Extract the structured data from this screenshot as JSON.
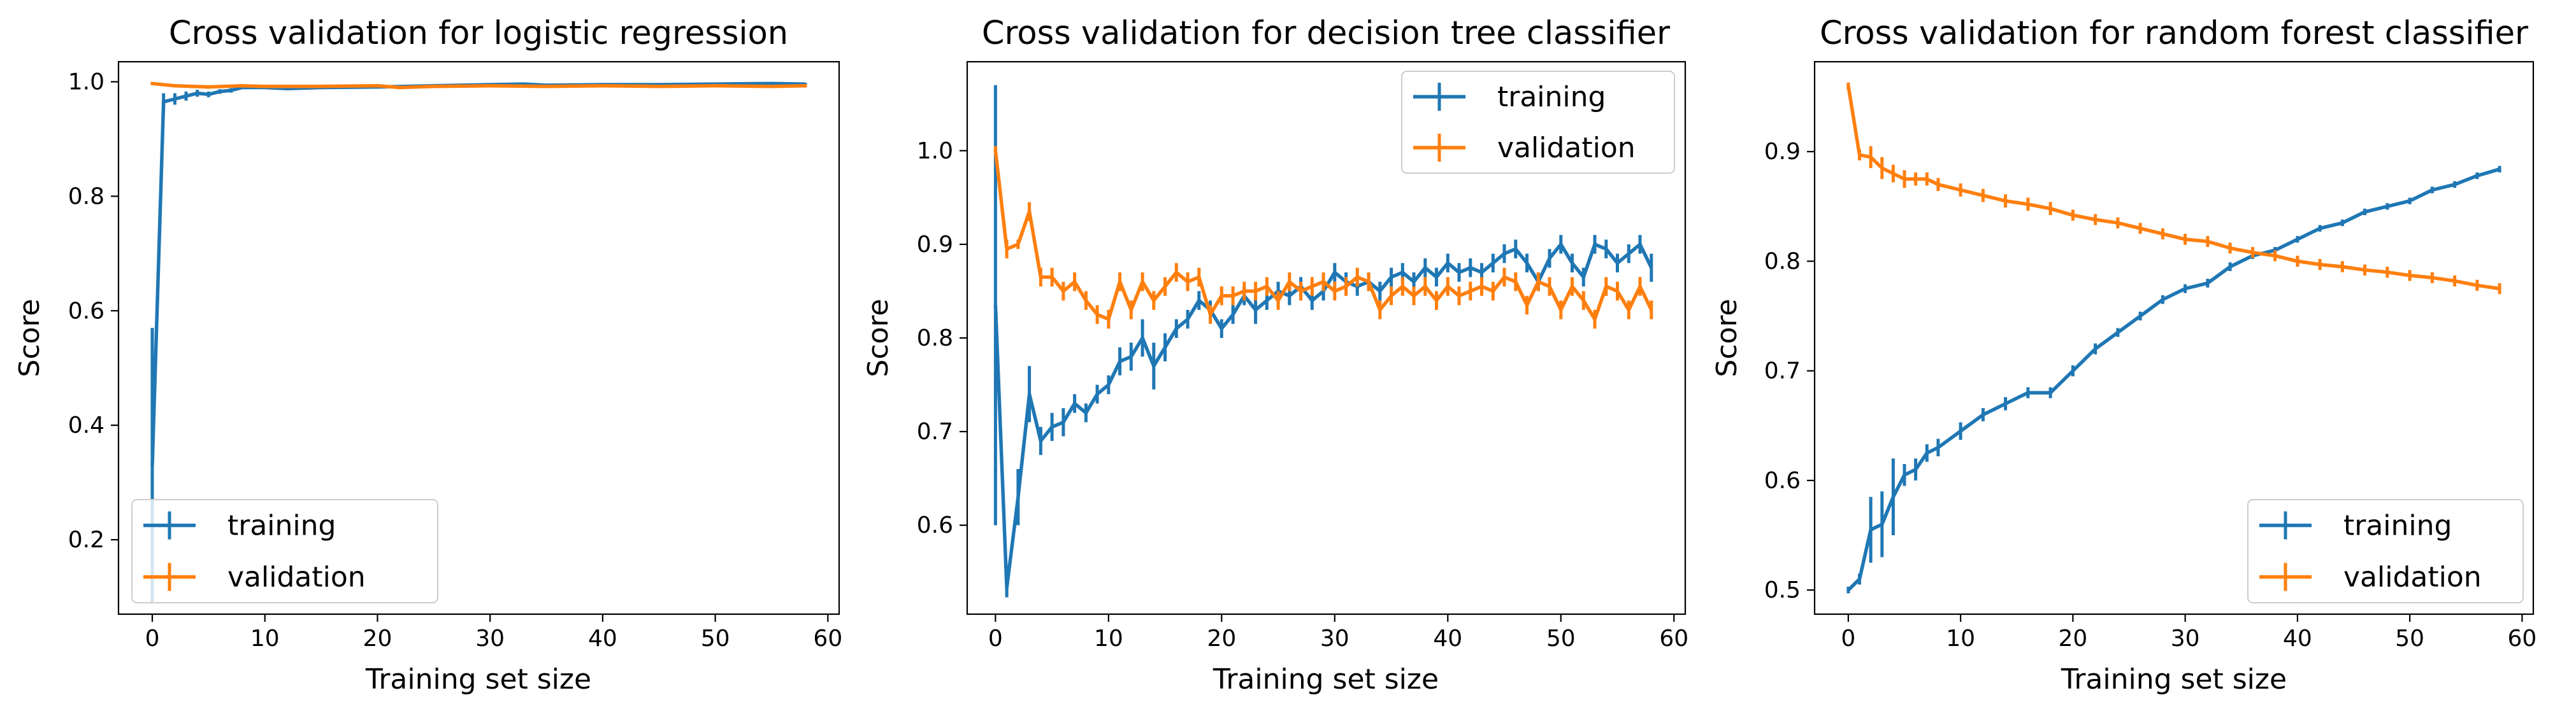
{
  "colors": {
    "training": "#1f77b4",
    "validation": "#ff7f0e"
  },
  "chart_data": [
    {
      "type": "line",
      "title": "Cross validation for logistic regression",
      "xlabel": "Training set size",
      "ylabel": "Score",
      "xlim": [
        -3,
        61
      ],
      "ylim": [
        0.07,
        1.035
      ],
      "xticks": [
        0,
        10,
        20,
        30,
        40,
        50,
        60
      ],
      "yticks": [
        0.2,
        0.4,
        0.6,
        0.8,
        1.0
      ],
      "legend": {
        "position": "lower-left"
      },
      "series": [
        {
          "name": "training",
          "x": [
            0,
            1,
            2,
            3,
            4,
            5,
            6,
            7,
            8,
            10,
            12,
            15,
            20,
            25,
            30,
            33,
            35,
            40,
            45,
            50,
            55,
            58
          ],
          "y": [
            0.33,
            0.965,
            0.97,
            0.975,
            0.98,
            0.978,
            0.983,
            0.985,
            0.99,
            0.99,
            0.988,
            0.99,
            0.991,
            0.993,
            0.995,
            0.996,
            0.994,
            0.995,
            0.995,
            0.996,
            0.997,
            0.996
          ],
          "error": [
            0.24,
            0.015,
            0.01,
            0.008,
            0.006,
            0.005,
            0.004,
            0.004,
            0.003,
            0.003,
            0.003,
            0.003,
            0.002,
            0.002,
            0.002,
            0.002,
            0.002,
            0.002,
            0.002,
            0.002,
            0.002,
            0.002
          ]
        },
        {
          "name": "validation",
          "x": [
            0,
            2,
            5,
            8,
            10,
            15,
            20,
            22,
            25,
            30,
            35,
            40,
            45,
            50,
            55,
            58
          ],
          "y": [
            0.997,
            0.993,
            0.991,
            0.993,
            0.992,
            0.992,
            0.993,
            0.99,
            0.992,
            0.993,
            0.992,
            0.993,
            0.992,
            0.993,
            0.992,
            0.993
          ],
          "error": [
            0.003,
            0.003,
            0.003,
            0.003,
            0.003,
            0.003,
            0.003,
            0.003,
            0.003,
            0.003,
            0.003,
            0.003,
            0.003,
            0.003,
            0.003,
            0.003
          ]
        }
      ]
    },
    {
      "type": "line",
      "title": "Cross validation for decision tree classifier",
      "xlabel": "Training set size",
      "ylabel": "Score",
      "xlim": [
        -2.5,
        61
      ],
      "ylim": [
        0.505,
        1.095
      ],
      "xticks": [
        0,
        10,
        20,
        30,
        40,
        50,
        60
      ],
      "yticks": [
        0.6,
        0.7,
        0.8,
        0.9,
        1.0
      ],
      "legend": {
        "position": "upper-right"
      },
      "series": [
        {
          "name": "training",
          "x": [
            0,
            1,
            2,
            3,
            4,
            5,
            6,
            7,
            8,
            9,
            10,
            11,
            12,
            13,
            14,
            15,
            16,
            17,
            18,
            19,
            20,
            21,
            22,
            23,
            24,
            25,
            26,
            27,
            28,
            29,
            30,
            31,
            32,
            33,
            34,
            35,
            36,
            37,
            38,
            39,
            40,
            41,
            42,
            43,
            44,
            45,
            46,
            47,
            48,
            49,
            50,
            51,
            52,
            53,
            54,
            55,
            56,
            57,
            58
          ],
          "y": [
            0.835,
            0.533,
            0.63,
            0.74,
            0.69,
            0.705,
            0.71,
            0.73,
            0.72,
            0.74,
            0.75,
            0.775,
            0.78,
            0.8,
            0.77,
            0.79,
            0.81,
            0.82,
            0.84,
            0.83,
            0.81,
            0.825,
            0.845,
            0.83,
            0.84,
            0.85,
            0.845,
            0.855,
            0.84,
            0.85,
            0.87,
            0.86,
            0.855,
            0.86,
            0.85,
            0.865,
            0.87,
            0.86,
            0.875,
            0.865,
            0.88,
            0.87,
            0.875,
            0.87,
            0.88,
            0.89,
            0.895,
            0.88,
            0.86,
            0.885,
            0.9,
            0.88,
            0.865,
            0.9,
            0.895,
            0.88,
            0.89,
            0.9,
            0.875
          ],
          "error": [
            0.235,
            0.01,
            0.03,
            0.03,
            0.015,
            0.015,
            0.015,
            0.01,
            0.01,
            0.01,
            0.01,
            0.015,
            0.015,
            0.02,
            0.025,
            0.015,
            0.01,
            0.01,
            0.01,
            0.01,
            0.01,
            0.01,
            0.01,
            0.015,
            0.01,
            0.01,
            0.01,
            0.01,
            0.01,
            0.01,
            0.01,
            0.01,
            0.01,
            0.01,
            0.01,
            0.01,
            0.01,
            0.01,
            0.01,
            0.01,
            0.01,
            0.01,
            0.01,
            0.01,
            0.01,
            0.01,
            0.01,
            0.01,
            0.01,
            0.01,
            0.01,
            0.01,
            0.01,
            0.01,
            0.01,
            0.01,
            0.01,
            0.01,
            0.015
          ]
        },
        {
          "name": "validation",
          "x": [
            0,
            1,
            2,
            3,
            4,
            5,
            6,
            7,
            8,
            9,
            10,
            11,
            12,
            13,
            14,
            15,
            16,
            17,
            18,
            19,
            20,
            21,
            22,
            23,
            24,
            25,
            26,
            27,
            28,
            29,
            30,
            31,
            32,
            33,
            34,
            35,
            36,
            37,
            38,
            39,
            40,
            41,
            42,
            43,
            44,
            45,
            46,
            47,
            48,
            49,
            50,
            51,
            52,
            53,
            54,
            55,
            56,
            57,
            58
          ],
          "y": [
            1.0,
            0.895,
            0.9,
            0.935,
            0.865,
            0.865,
            0.85,
            0.86,
            0.84,
            0.825,
            0.82,
            0.86,
            0.83,
            0.86,
            0.84,
            0.855,
            0.87,
            0.86,
            0.865,
            0.825,
            0.845,
            0.845,
            0.85,
            0.85,
            0.855,
            0.84,
            0.86,
            0.85,
            0.855,
            0.86,
            0.85,
            0.855,
            0.865,
            0.86,
            0.83,
            0.845,
            0.855,
            0.845,
            0.855,
            0.84,
            0.855,
            0.845,
            0.85,
            0.855,
            0.85,
            0.865,
            0.86,
            0.835,
            0.86,
            0.855,
            0.83,
            0.855,
            0.84,
            0.82,
            0.855,
            0.85,
            0.83,
            0.855,
            0.83
          ],
          "error": [
            0.005,
            0.01,
            0.005,
            0.01,
            0.01,
            0.01,
            0.01,
            0.01,
            0.01,
            0.01,
            0.01,
            0.01,
            0.01,
            0.01,
            0.01,
            0.01,
            0.01,
            0.01,
            0.01,
            0.01,
            0.01,
            0.01,
            0.01,
            0.01,
            0.01,
            0.01,
            0.01,
            0.01,
            0.01,
            0.01,
            0.01,
            0.01,
            0.01,
            0.01,
            0.01,
            0.01,
            0.01,
            0.01,
            0.01,
            0.01,
            0.01,
            0.01,
            0.01,
            0.01,
            0.01,
            0.01,
            0.01,
            0.01,
            0.01,
            0.01,
            0.01,
            0.01,
            0.01,
            0.01,
            0.01,
            0.01,
            0.01,
            0.01,
            0.01
          ]
        }
      ]
    },
    {
      "type": "line",
      "title": "Cross validation for random forest classifier",
      "xlabel": "Training set size",
      "ylabel": "Score",
      "xlim": [
        -3,
        61
      ],
      "ylim": [
        0.478,
        0.982
      ],
      "xticks": [
        0,
        10,
        20,
        30,
        40,
        50,
        60
      ],
      "yticks": [
        0.5,
        0.6,
        0.7,
        0.8,
        0.9
      ],
      "legend": {
        "position": "lower-right"
      },
      "series": [
        {
          "name": "training",
          "x": [
            0,
            1,
            2,
            3,
            4,
            5,
            6,
            7,
            8,
            10,
            12,
            14,
            16,
            18,
            20,
            22,
            24,
            26,
            28,
            30,
            32,
            34,
            36,
            38,
            40,
            42,
            44,
            46,
            48,
            50,
            52,
            54,
            56,
            58
          ],
          "y": [
            0.5,
            0.51,
            0.555,
            0.56,
            0.585,
            0.605,
            0.61,
            0.625,
            0.63,
            0.645,
            0.66,
            0.67,
            0.68,
            0.68,
            0.7,
            0.72,
            0.735,
            0.75,
            0.765,
            0.775,
            0.78,
            0.795,
            0.805,
            0.81,
            0.82,
            0.83,
            0.835,
            0.845,
            0.85,
            0.855,
            0.865,
            0.87,
            0.878,
            0.884
          ],
          "error": [
            0.003,
            0.005,
            0.03,
            0.03,
            0.035,
            0.01,
            0.01,
            0.008,
            0.008,
            0.008,
            0.006,
            0.006,
            0.005,
            0.005,
            0.005,
            0.005,
            0.004,
            0.004,
            0.004,
            0.004,
            0.004,
            0.004,
            0.003,
            0.003,
            0.003,
            0.003,
            0.003,
            0.003,
            0.003,
            0.003,
            0.003,
            0.003,
            0.003,
            0.003
          ]
        },
        {
          "name": "validation",
          "x": [
            0,
            1,
            2,
            3,
            4,
            5,
            6,
            7,
            8,
            10,
            12,
            14,
            16,
            18,
            20,
            22,
            24,
            26,
            28,
            30,
            32,
            34,
            36,
            38,
            40,
            42,
            44,
            46,
            48,
            50,
            52,
            54,
            56,
            58
          ],
          "y": [
            0.96,
            0.897,
            0.895,
            0.885,
            0.88,
            0.875,
            0.875,
            0.875,
            0.87,
            0.865,
            0.86,
            0.855,
            0.852,
            0.848,
            0.842,
            0.838,
            0.835,
            0.83,
            0.825,
            0.82,
            0.818,
            0.812,
            0.808,
            0.805,
            0.8,
            0.797,
            0.795,
            0.792,
            0.79,
            0.787,
            0.785,
            0.782,
            0.778,
            0.775
          ],
          "error": [
            0.003,
            0.005,
            0.01,
            0.01,
            0.008,
            0.008,
            0.006,
            0.006,
            0.006,
            0.006,
            0.006,
            0.006,
            0.006,
            0.006,
            0.005,
            0.005,
            0.005,
            0.005,
            0.005,
            0.005,
            0.005,
            0.005,
            0.005,
            0.005,
            0.005,
            0.005,
            0.005,
            0.005,
            0.005,
            0.005,
            0.005,
            0.005,
            0.005,
            0.005
          ]
        }
      ]
    }
  ]
}
